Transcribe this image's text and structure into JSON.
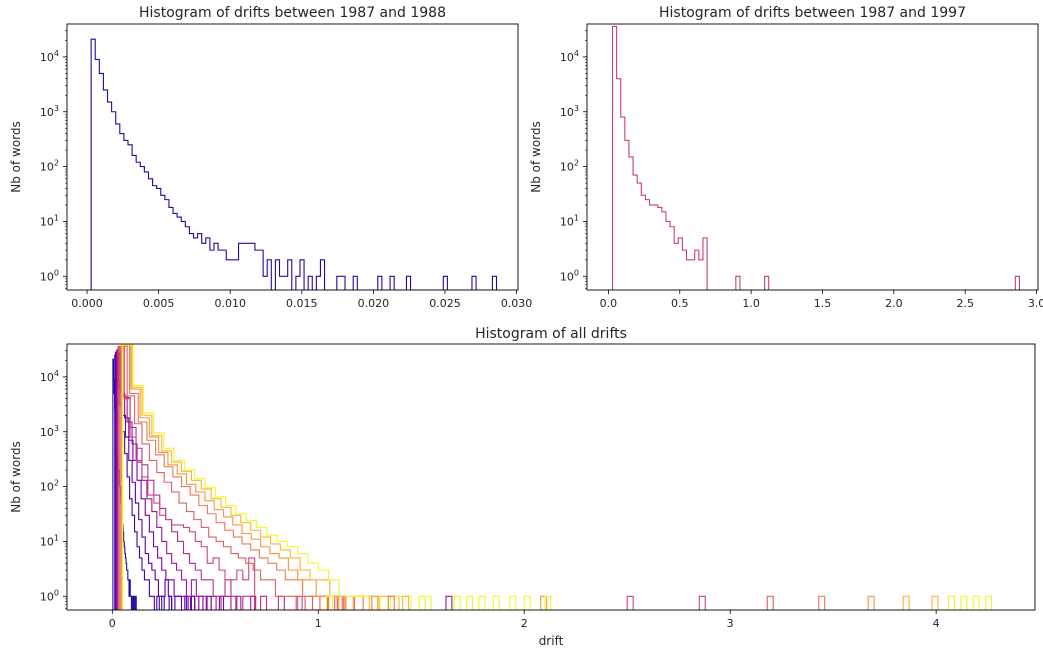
{
  "chart_data": [
    {
      "type": "histogram",
      "title": "Histogram of drifts between 1987 and 1988",
      "ylabel": "Nb of words",
      "xlabel": "",
      "yscale": "log",
      "xlim": [
        -0.0014,
        0.0301
      ],
      "ylim_exp": [
        -0.25,
        4.6
      ],
      "xticks": [
        0.0,
        0.005,
        0.01,
        0.015,
        0.02,
        0.025,
        0.03
      ],
      "xtick_labels": [
        "0.000",
        "0.005",
        "0.010",
        "0.015",
        "0.020",
        "0.025",
        "0.030"
      ],
      "yticks": [
        0,
        1,
        2,
        3,
        4
      ],
      "bins": {
        "start": 0.0,
        "step": 0.000286,
        "count": 100
      },
      "color": "#1f0c9c",
      "counts": [
        0,
        21000,
        9000,
        5000,
        2500,
        1500,
        1000,
        600,
        400,
        300,
        250,
        160,
        120,
        100,
        80,
        60,
        45,
        40,
        30,
        25,
        18,
        14,
        12,
        10,
        8,
        6,
        5,
        6,
        4,
        5,
        3,
        4,
        3,
        3,
        2,
        2,
        2,
        4,
        4,
        4,
        4,
        3,
        3,
        1,
        2,
        0,
        2,
        1,
        1,
        2,
        0,
        1,
        2,
        0,
        1,
        0,
        1,
        2,
        0,
        0,
        0,
        1,
        1,
        0,
        0,
        1,
        0,
        0,
        0,
        0,
        0,
        1,
        0,
        0,
        1,
        0,
        0,
        0,
        1,
        0,
        0,
        0,
        0,
        0,
        0,
        0,
        0,
        1,
        0,
        0,
        0,
        0,
        0,
        0,
        1,
        0,
        0,
        0,
        0,
        1
      ]
    },
    {
      "type": "histogram",
      "title": "Histogram of drifts between 1987 and 1997",
      "ylabel": "Nb of words",
      "xlabel": "",
      "yscale": "log",
      "xlim": [
        -0.15,
        3.01
      ],
      "ylim_exp": [
        -0.25,
        4.6
      ],
      "xticks": [
        0.0,
        0.5,
        1.0,
        1.5,
        2.0,
        2.5,
        3.0
      ],
      "xtick_labels": [
        "0.0",
        "0.5",
        "1.0",
        "1.5",
        "2.0",
        "2.5",
        "3.0"
      ],
      "yticks": [
        0,
        1,
        2,
        3,
        4
      ],
      "bins": {
        "start": 0.0,
        "step": 0.0288,
        "count": 100
      },
      "color": "#c5407e",
      "counts": [
        0,
        36000,
        4000,
        800,
        300,
        150,
        70,
        50,
        30,
        25,
        20,
        20,
        18,
        15,
        10,
        8,
        4,
        5,
        3,
        2,
        2,
        3,
        2,
        5,
        0,
        0,
        0,
        0,
        0,
        0,
        0,
        1,
        0,
        0,
        0,
        0,
        0,
        0,
        1,
        0,
        0,
        0,
        0,
        0,
        0,
        0,
        0,
        0,
        0,
        0,
        0,
        0,
        0,
        0,
        0,
        0,
        0,
        0,
        0,
        0,
        0,
        0,
        0,
        0,
        0,
        0,
        0,
        0,
        0,
        0,
        0,
        0,
        0,
        0,
        0,
        0,
        0,
        0,
        0,
        0,
        0,
        0,
        0,
        0,
        0,
        0,
        0,
        0,
        0,
        0,
        0,
        0,
        0,
        0,
        0,
        0,
        0,
        0,
        0,
        1
      ]
    },
    {
      "type": "histogram",
      "title": "Histogram of all drifts",
      "ylabel": "Nb of words",
      "xlabel": "drift",
      "yscale": "log",
      "xlim": [
        -0.22,
        4.48
      ],
      "ylim_exp": [
        -0.25,
        4.6
      ],
      "xticks": [
        0,
        1,
        2,
        3,
        4
      ],
      "xtick_labels": [
        "0",
        "1",
        "2",
        "3",
        "4"
      ],
      "yticks": [
        0,
        1,
        2,
        3,
        4
      ],
      "bins_step_default": 0.0288,
      "series": [
        {
          "color": "#1f0c9c",
          "bin_step": 0.0029,
          "counts": [
            0,
            21000,
            9000,
            5000,
            2500,
            1500,
            1000,
            600,
            400,
            300,
            200,
            150,
            100,
            70,
            50,
            40,
            30,
            20,
            15,
            10,
            8,
            6,
            5,
            4,
            3,
            3,
            2,
            2,
            1,
            2,
            1,
            1,
            0,
            1,
            1,
            0,
            1,
            0,
            0,
            1
          ]
        },
        {
          "color": "#3e049c",
          "bin_step": 0.012,
          "counts": [
            0,
            25000,
            8000,
            3000,
            1000,
            400,
            150,
            60,
            30,
            15,
            8,
            5,
            3,
            2,
            2,
            1,
            1,
            0,
            1,
            0,
            1,
            0,
            0,
            1
          ]
        },
        {
          "color": "#5b01a5",
          "bin_step": 0.016,
          "counts": [
            0,
            28000,
            6000,
            2000,
            800,
            300,
            120,
            50,
            25,
            12,
            6,
            4,
            3,
            2,
            1,
            1,
            2,
            1,
            0,
            1,
            1,
            0,
            1,
            0,
            1
          ]
        },
        {
          "color": "#7a02a8",
          "bin_step": 0.02,
          "counts": [
            0,
            30000,
            5000,
            1800,
            700,
            300,
            130,
            60,
            30,
            15,
            8,
            5,
            3,
            2,
            2,
            1,
            1,
            1,
            0,
            1,
            0,
            1,
            0,
            1,
            0,
            0,
            1
          ]
        },
        {
          "color": "#9c179e",
          "bin_step": 0.024,
          "counts": [
            0,
            32000,
            4500,
            1500,
            600,
            280,
            130,
            60,
            35,
            18,
            10,
            6,
            4,
            3,
            2,
            1,
            2,
            1,
            1,
            0,
            1,
            0,
            1,
            1,
            0,
            1,
            0,
            0,
            1
          ]
        },
        {
          "color": "#b52f8c",
          "bin_step": 0.0288,
          "counts": [
            0,
            34000,
            4200,
            1200,
            500,
            250,
            130,
            70,
            40,
            25,
            15,
            10,
            6,
            4,
            3,
            2,
            2,
            1,
            1,
            2,
            1,
            0,
            1,
            1,
            0,
            1,
            0,
            0,
            1
          ]
        },
        {
          "color": "#cc4778",
          "bin_step": 0.0288,
          "counts": [
            0,
            36000,
            4000,
            800,
            300,
            150,
            70,
            50,
            30,
            25,
            20,
            20,
            18,
            15,
            10,
            8,
            4,
            5,
            3,
            2,
            2,
            3,
            2,
            5,
            0,
            0,
            0,
            0,
            0,
            0,
            0,
            1,
            0,
            0,
            0,
            0,
            0,
            0,
            1
          ]
        },
        {
          "color": "#de5f65",
          "bin_step": 0.036,
          "counts": [
            0,
            36000,
            4500,
            1400,
            600,
            300,
            180,
            120,
            80,
            50,
            35,
            25,
            18,
            12,
            10,
            8,
            6,
            5,
            4,
            3,
            2,
            2,
            1,
            1,
            1,
            0,
            1,
            0,
            1,
            0,
            1
          ]
        },
        {
          "color": "#ed7953",
          "bin_step": 0.042,
          "counts": [
            0,
            37000,
            5000,
            1500,
            700,
            380,
            230,
            150,
            100,
            70,
            45,
            32,
            22,
            16,
            12,
            9,
            7,
            5,
            4,
            3,
            2,
            2,
            1,
            1,
            1,
            0,
            1,
            0,
            1
          ]
        },
        {
          "color": "#f89540",
          "bin_step": 0.045,
          "counts": [
            0,
            37000,
            6000,
            1800,
            800,
            420,
            250,
            170,
            110,
            80,
            55,
            38,
            28,
            20,
            14,
            11,
            8,
            6,
            5,
            3,
            2,
            2,
            1,
            1,
            1,
            0,
            1,
            1
          ]
        },
        {
          "color": "#fdb42f",
          "bin_step": 0.048,
          "counts": [
            0,
            38000,
            6500,
            2000,
            850,
            450,
            280,
            190,
            130,
            90,
            60,
            42,
            30,
            22,
            16,
            12,
            9,
            7,
            5,
            3,
            2,
            2,
            1,
            1,
            1,
            1,
            0,
            1,
            1
          ]
        },
        {
          "color": "#f0f921",
          "bin_step": 0.05,
          "counts": [
            0,
            38000,
            7000,
            2200,
            950,
            500,
            300,
            200,
            140,
            95,
            65,
            45,
            32,
            24,
            18,
            13,
            10,
            8,
            6,
            4,
            3,
            2,
            1,
            1,
            1,
            1,
            0,
            1,
            1
          ]
        }
      ],
      "sparse_markers": [
        {
          "x": 1.04,
          "color": "#f0f921"
        },
        {
          "x": 1.1,
          "color": "#fdb42f"
        },
        {
          "x": 1.26,
          "color": "#f89540"
        },
        {
          "x": 1.34,
          "color": "#ed7953"
        },
        {
          "x": 1.41,
          "color": "#fdb42f"
        },
        {
          "x": 1.49,
          "color": "#f0f921"
        },
        {
          "x": 1.52,
          "color": "#f0f921"
        },
        {
          "x": 1.62,
          "color": "#9c179e"
        },
        {
          "x": 1.66,
          "color": "#f0f921"
        },
        {
          "x": 1.72,
          "color": "#f0f921"
        },
        {
          "x": 1.78,
          "color": "#f0f921"
        },
        {
          "x": 1.85,
          "color": "#f0f921"
        },
        {
          "x": 1.93,
          "color": "#f0f921"
        },
        {
          "x": 2.0,
          "color": "#f0f921"
        },
        {
          "x": 2.08,
          "color": "#f89540"
        },
        {
          "x": 2.1,
          "color": "#f0f921"
        },
        {
          "x": 2.5,
          "color": "#cc4778"
        },
        {
          "x": 2.85,
          "color": "#cc4778"
        },
        {
          "x": 3.18,
          "color": "#de5f65"
        },
        {
          "x": 3.43,
          "color": "#ed7953"
        },
        {
          "x": 3.67,
          "color": "#f89540"
        },
        {
          "x": 3.84,
          "color": "#fdb42f"
        },
        {
          "x": 3.98,
          "color": "#fdb42f"
        },
        {
          "x": 4.06,
          "color": "#f0f921"
        },
        {
          "x": 4.12,
          "color": "#f0f921"
        },
        {
          "x": 4.18,
          "color": "#f0f921"
        },
        {
          "x": 4.24,
          "color": "#f0f921"
        }
      ]
    }
  ]
}
